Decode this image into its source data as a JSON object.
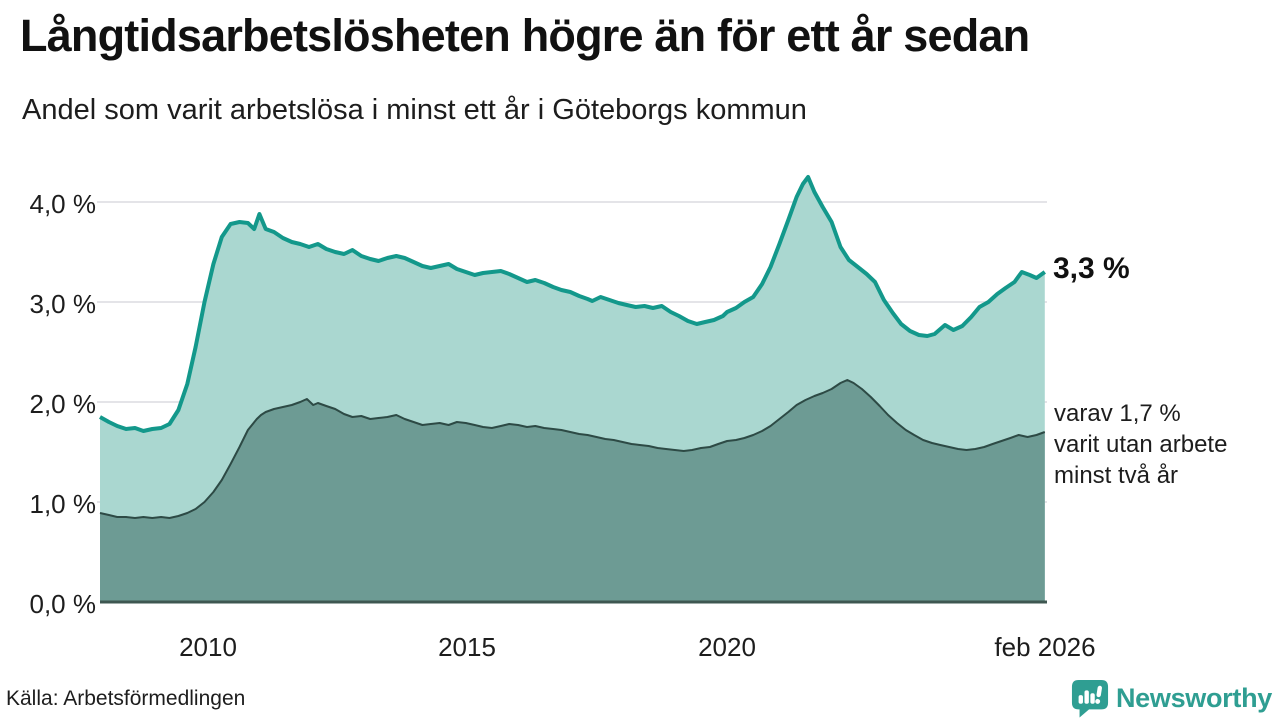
{
  "header": {
    "title": "Långtidsarbetslösheten högre än för ett år sedan",
    "subtitle": "Andel som varit arbetslösa i minst ett år i Göteborgs kommun"
  },
  "annotations": {
    "end_value": "3,3 %",
    "note_lines": [
      "varav 1,7 %",
      "varit utan arbete",
      "minst två år"
    ]
  },
  "footer": {
    "source": "Källa: Arbetsförmedlingen",
    "brand": "Newsworthy"
  },
  "colors": {
    "line_total": "#13988b",
    "fill_total": "#aad7d0",
    "fill_two_years": "#6d9b94",
    "line_two_years": "#2d4a45",
    "gridline": "#e4e4e8",
    "axis": "#3e5751",
    "brand": "#2f9e92",
    "text": "#1d1d1d"
  },
  "chart_data": {
    "type": "area",
    "title": "Långtidsarbetslösheten högre än för ett år sedan",
    "subtitle": "Andel som varit arbetslösa i minst ett år i Göteborgs kommun",
    "xlabel": "",
    "ylabel": "",
    "unit": "%",
    "grid": "horizontal",
    "legend_position": "right-annotations",
    "xlim": [
      2008.0,
      2026.083
    ],
    "ylim": [
      0,
      4.25
    ],
    "yticks": [
      {
        "value": 4.0,
        "label": "4,0 %"
      },
      {
        "value": 3.0,
        "label": "3,0 %"
      },
      {
        "value": 2.0,
        "label": "2,0 %"
      },
      {
        "value": 1.0,
        "label": "1,0 %"
      },
      {
        "value": 0.0,
        "label": "0,0 %"
      }
    ],
    "xticks": [
      {
        "value": 2010,
        "label": "2010"
      },
      {
        "value": 2015,
        "label": "2015"
      },
      {
        "value": 2020,
        "label": "2020"
      },
      {
        "value": 2026.083,
        "label": "feb 2026"
      }
    ],
    "series": [
      {
        "name": "unemployed_at_least_one_year",
        "annotation": "3,3 %",
        "last_value": 3.3,
        "points": [
          [
            2008.0,
            1.85
          ],
          [
            2008.17,
            1.8
          ],
          [
            2008.33,
            1.76
          ],
          [
            2008.5,
            1.73
          ],
          [
            2008.67,
            1.74
          ],
          [
            2008.83,
            1.71
          ],
          [
            2009.0,
            1.73
          ],
          [
            2009.17,
            1.74
          ],
          [
            2009.33,
            1.78
          ],
          [
            2009.5,
            1.92
          ],
          [
            2009.67,
            2.18
          ],
          [
            2009.83,
            2.55
          ],
          [
            2010.0,
            3.0
          ],
          [
            2010.17,
            3.38
          ],
          [
            2010.33,
            3.65
          ],
          [
            2010.5,
            3.78
          ],
          [
            2010.67,
            3.8
          ],
          [
            2010.83,
            3.79
          ],
          [
            2010.95,
            3.73
          ],
          [
            2011.05,
            3.88
          ],
          [
            2011.17,
            3.73
          ],
          [
            2011.33,
            3.7
          ],
          [
            2011.5,
            3.64
          ],
          [
            2011.67,
            3.6
          ],
          [
            2011.83,
            3.58
          ],
          [
            2012.0,
            3.55
          ],
          [
            2012.17,
            3.58
          ],
          [
            2012.33,
            3.53
          ],
          [
            2012.5,
            3.5
          ],
          [
            2012.67,
            3.48
          ],
          [
            2012.83,
            3.52
          ],
          [
            2013.0,
            3.46
          ],
          [
            2013.17,
            3.43
          ],
          [
            2013.33,
            3.41
          ],
          [
            2013.5,
            3.44
          ],
          [
            2013.67,
            3.46
          ],
          [
            2013.83,
            3.44
          ],
          [
            2014.0,
            3.4
          ],
          [
            2014.17,
            3.36
          ],
          [
            2014.33,
            3.34
          ],
          [
            2014.5,
            3.36
          ],
          [
            2014.67,
            3.38
          ],
          [
            2014.83,
            3.33
          ],
          [
            2015.0,
            3.3
          ],
          [
            2015.17,
            3.27
          ],
          [
            2015.33,
            3.29
          ],
          [
            2015.5,
            3.3
          ],
          [
            2015.67,
            3.31
          ],
          [
            2015.83,
            3.28
          ],
          [
            2016.0,
            3.24
          ],
          [
            2016.17,
            3.2
          ],
          [
            2016.33,
            3.22
          ],
          [
            2016.5,
            3.19
          ],
          [
            2016.67,
            3.15
          ],
          [
            2016.83,
            3.12
          ],
          [
            2017.0,
            3.1
          ],
          [
            2017.17,
            3.06
          ],
          [
            2017.33,
            3.03
          ],
          [
            2017.42,
            3.01
          ],
          [
            2017.58,
            3.05
          ],
          [
            2017.75,
            3.02
          ],
          [
            2017.92,
            2.99
          ],
          [
            2018.08,
            2.97
          ],
          [
            2018.25,
            2.95
          ],
          [
            2018.42,
            2.96
          ],
          [
            2018.58,
            2.94
          ],
          [
            2018.75,
            2.96
          ],
          [
            2018.92,
            2.9
          ],
          [
            2019.08,
            2.86
          ],
          [
            2019.25,
            2.81
          ],
          [
            2019.42,
            2.78
          ],
          [
            2019.58,
            2.8
          ],
          [
            2019.75,
            2.82
          ],
          [
            2019.92,
            2.86
          ],
          [
            2020.0,
            2.9
          ],
          [
            2020.17,
            2.94
          ],
          [
            2020.33,
            3.0
          ],
          [
            2020.5,
            3.05
          ],
          [
            2020.67,
            3.18
          ],
          [
            2020.83,
            3.35
          ],
          [
            2021.0,
            3.58
          ],
          [
            2021.17,
            3.82
          ],
          [
            2021.33,
            4.05
          ],
          [
            2021.45,
            4.18
          ],
          [
            2021.55,
            4.25
          ],
          [
            2021.67,
            4.1
          ],
          [
            2021.83,
            3.95
          ],
          [
            2022.0,
            3.8
          ],
          [
            2022.17,
            3.55
          ],
          [
            2022.33,
            3.42
          ],
          [
            2022.5,
            3.35
          ],
          [
            2022.67,
            3.28
          ],
          [
            2022.83,
            3.2
          ],
          [
            2023.0,
            3.02
          ],
          [
            2023.17,
            2.89
          ],
          [
            2023.33,
            2.78
          ],
          [
            2023.5,
            2.71
          ],
          [
            2023.67,
            2.67
          ],
          [
            2023.83,
            2.66
          ],
          [
            2023.97,
            2.68
          ],
          [
            2024.17,
            2.77
          ],
          [
            2024.33,
            2.72
          ],
          [
            2024.5,
            2.76
          ],
          [
            2024.67,
            2.85
          ],
          [
            2024.83,
            2.95
          ],
          [
            2025.0,
            3.0
          ],
          [
            2025.17,
            3.08
          ],
          [
            2025.33,
            3.14
          ],
          [
            2025.5,
            3.2
          ],
          [
            2025.64,
            3.3
          ],
          [
            2025.79,
            3.27
          ],
          [
            2025.92,
            3.24
          ],
          [
            2026.08,
            3.3
          ]
        ]
      },
      {
        "name": "unemployed_at_least_two_years",
        "annotation": "varav 1,7 % varit utan arbete minst två år",
        "last_value": 1.7,
        "points": [
          [
            2008.0,
            0.89
          ],
          [
            2008.17,
            0.87
          ],
          [
            2008.33,
            0.85
          ],
          [
            2008.5,
            0.85
          ],
          [
            2008.67,
            0.84
          ],
          [
            2008.83,
            0.85
          ],
          [
            2009.0,
            0.84
          ],
          [
            2009.17,
            0.85
          ],
          [
            2009.33,
            0.84
          ],
          [
            2009.5,
            0.86
          ],
          [
            2009.67,
            0.89
          ],
          [
            2009.83,
            0.93
          ],
          [
            2010.0,
            1.0
          ],
          [
            2010.17,
            1.1
          ],
          [
            2010.33,
            1.22
          ],
          [
            2010.5,
            1.38
          ],
          [
            2010.67,
            1.55
          ],
          [
            2010.83,
            1.72
          ],
          [
            2011.0,
            1.83
          ],
          [
            2011.08,
            1.87
          ],
          [
            2011.17,
            1.9
          ],
          [
            2011.33,
            1.93
          ],
          [
            2011.5,
            1.95
          ],
          [
            2011.67,
            1.97
          ],
          [
            2011.83,
            2.0
          ],
          [
            2011.96,
            2.03
          ],
          [
            2012.08,
            1.97
          ],
          [
            2012.17,
            1.99
          ],
          [
            2012.33,
            1.96
          ],
          [
            2012.5,
            1.93
          ],
          [
            2012.67,
            1.88
          ],
          [
            2012.83,
            1.85
          ],
          [
            2013.0,
            1.86
          ],
          [
            2013.17,
            1.83
          ],
          [
            2013.33,
            1.84
          ],
          [
            2013.5,
            1.85
          ],
          [
            2013.67,
            1.87
          ],
          [
            2013.83,
            1.83
          ],
          [
            2014.0,
            1.8
          ],
          [
            2014.17,
            1.77
          ],
          [
            2014.33,
            1.78
          ],
          [
            2014.5,
            1.79
          ],
          [
            2014.67,
            1.77
          ],
          [
            2014.83,
            1.8
          ],
          [
            2015.0,
            1.79
          ],
          [
            2015.17,
            1.77
          ],
          [
            2015.33,
            1.75
          ],
          [
            2015.5,
            1.74
          ],
          [
            2015.67,
            1.76
          ],
          [
            2015.83,
            1.78
          ],
          [
            2016.0,
            1.77
          ],
          [
            2016.17,
            1.75
          ],
          [
            2016.33,
            1.76
          ],
          [
            2016.5,
            1.74
          ],
          [
            2016.67,
            1.73
          ],
          [
            2016.83,
            1.72
          ],
          [
            2017.0,
            1.7
          ],
          [
            2017.17,
            1.68
          ],
          [
            2017.33,
            1.67
          ],
          [
            2017.5,
            1.65
          ],
          [
            2017.67,
            1.63
          ],
          [
            2017.83,
            1.62
          ],
          [
            2018.0,
            1.6
          ],
          [
            2018.17,
            1.58
          ],
          [
            2018.33,
            1.57
          ],
          [
            2018.5,
            1.56
          ],
          [
            2018.67,
            1.54
          ],
          [
            2018.83,
            1.53
          ],
          [
            2019.0,
            1.52
          ],
          [
            2019.17,
            1.51
          ],
          [
            2019.33,
            1.52
          ],
          [
            2019.5,
            1.54
          ],
          [
            2019.67,
            1.55
          ],
          [
            2019.83,
            1.58
          ],
          [
            2020.0,
            1.61
          ],
          [
            2020.17,
            1.62
          ],
          [
            2020.33,
            1.64
          ],
          [
            2020.5,
            1.67
          ],
          [
            2020.67,
            1.71
          ],
          [
            2020.83,
            1.76
          ],
          [
            2021.0,
            1.83
          ],
          [
            2021.17,
            1.9
          ],
          [
            2021.33,
            1.97
          ],
          [
            2021.5,
            2.02
          ],
          [
            2021.67,
            2.06
          ],
          [
            2021.83,
            2.09
          ],
          [
            2022.0,
            2.13
          ],
          [
            2022.17,
            2.19
          ],
          [
            2022.3,
            2.22
          ],
          [
            2022.42,
            2.19
          ],
          [
            2022.58,
            2.13
          ],
          [
            2022.75,
            2.05
          ],
          [
            2022.92,
            1.96
          ],
          [
            2023.08,
            1.87
          ],
          [
            2023.25,
            1.79
          ],
          [
            2023.42,
            1.72
          ],
          [
            2023.58,
            1.67
          ],
          [
            2023.75,
            1.62
          ],
          [
            2023.92,
            1.59
          ],
          [
            2024.08,
            1.57
          ],
          [
            2024.25,
            1.55
          ],
          [
            2024.42,
            1.53
          ],
          [
            2024.58,
            1.52
          ],
          [
            2024.75,
            1.53
          ],
          [
            2024.92,
            1.55
          ],
          [
            2025.08,
            1.58
          ],
          [
            2025.25,
            1.61
          ],
          [
            2025.42,
            1.64
          ],
          [
            2025.58,
            1.67
          ],
          [
            2025.75,
            1.65
          ],
          [
            2025.92,
            1.67
          ],
          [
            2026.08,
            1.7
          ]
        ]
      }
    ]
  }
}
